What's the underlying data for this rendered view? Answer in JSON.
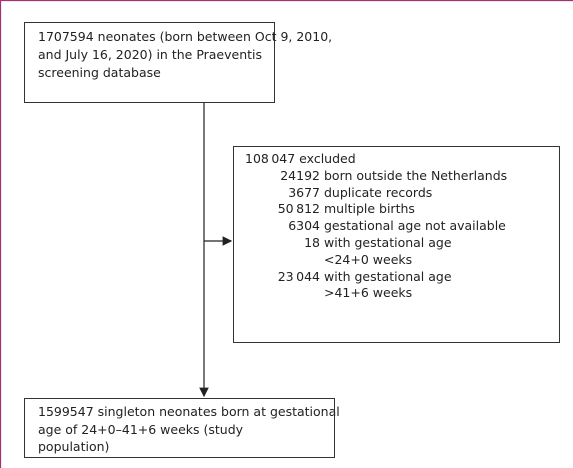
{
  "top_box": {
    "lines": [
      "1707594 neonates (born between Oct 9, 2010,",
      "and July 16, 2020) in the Praeventis",
      "screening database"
    ]
  },
  "excluded_box": {
    "heading": "108 047 excluded",
    "items": [
      {
        "count": "24192",
        "lines": [
          "born outside the Netherlands"
        ]
      },
      {
        "count": "3677",
        "lines": [
          "duplicate records"
        ]
      },
      {
        "count": "50 812",
        "lines": [
          "multiple births"
        ]
      },
      {
        "count": "6304",
        "lines": [
          "gestational age not available"
        ]
      },
      {
        "count": "18",
        "lines": [
          "with gestational age",
          "<24+0 weeks"
        ]
      },
      {
        "count": "23 044",
        "lines": [
          "with gestational age",
          ">41+6 weeks"
        ]
      }
    ]
  },
  "bottom_box": {
    "lines": [
      "1599547 singleton neonates born at gestational",
      "age of 24+0–41+6 weeks (study",
      "population)"
    ]
  }
}
